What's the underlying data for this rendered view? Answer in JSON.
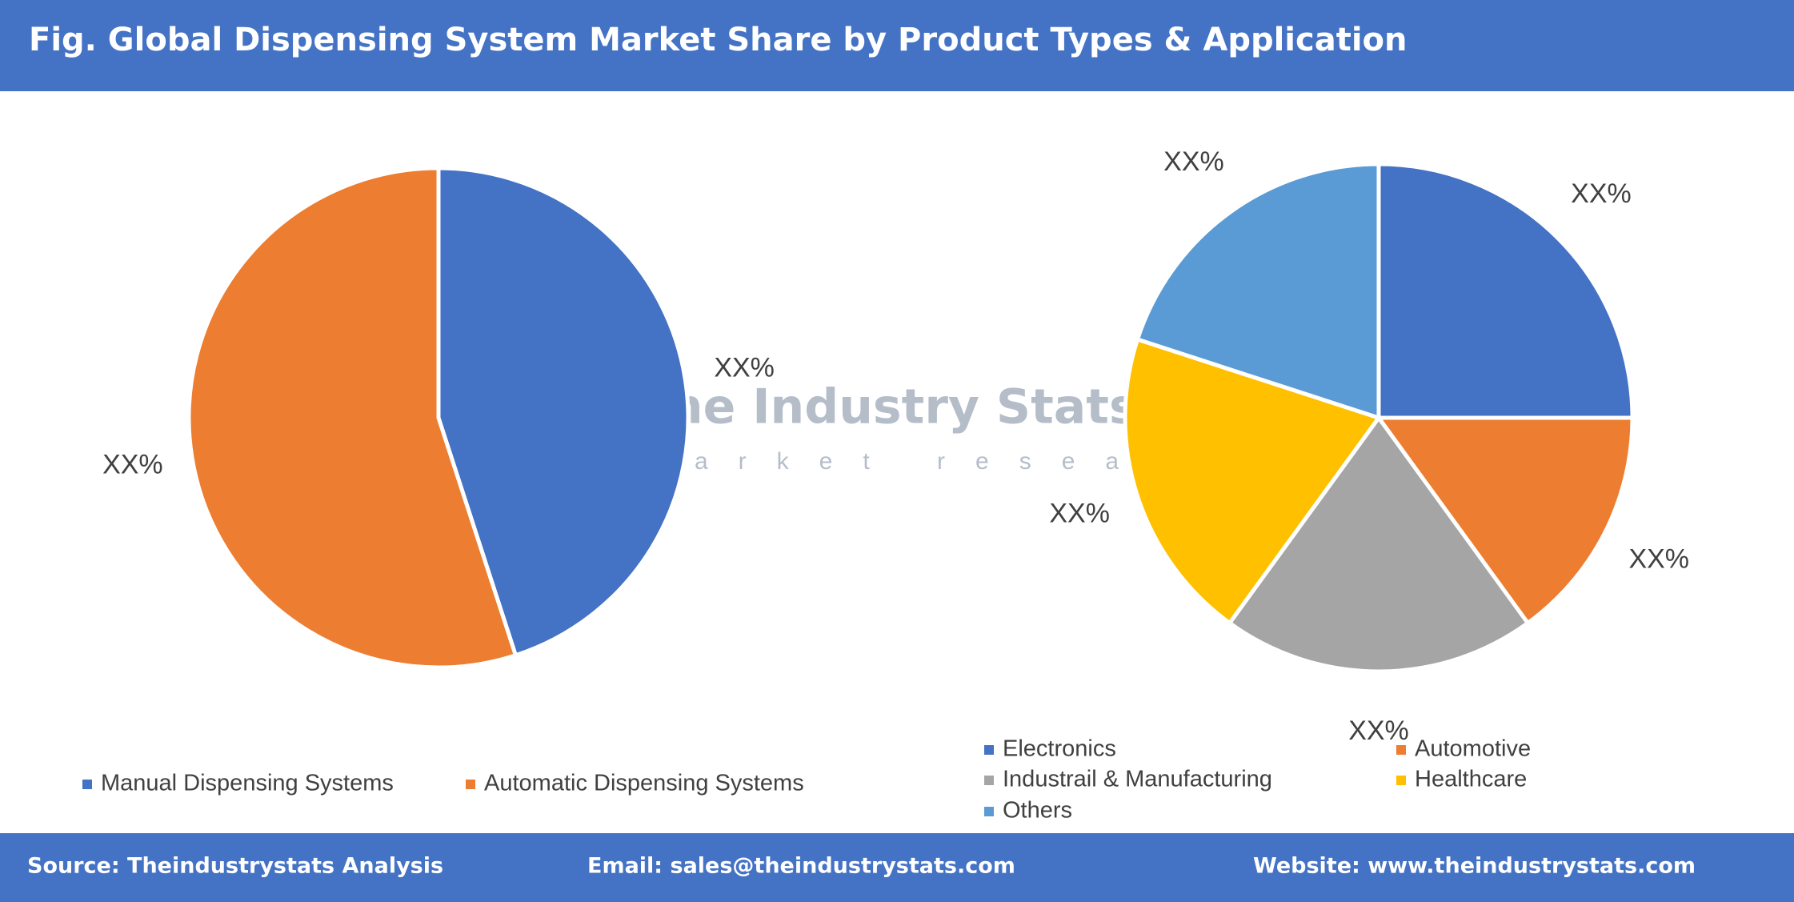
{
  "title": "Fig. Global Dispensing System Market Share by Product Types & Application",
  "watermark": {
    "name": "The Industry Stats",
    "tagline": "market research"
  },
  "chart_data": [
    {
      "type": "pie",
      "categories": [
        "Manual Dispensing Systems",
        "Automatic Dispensing Systems"
      ],
      "values": [
        45,
        55
      ],
      "value_labels": [
        "XX%",
        "XX%"
      ],
      "colors": [
        "#4472c4",
        "#ed7d31"
      ]
    },
    {
      "type": "pie",
      "categories": [
        "Electronics",
        "Automotive",
        "Industrail & Manufacturing",
        "Healthcare",
        "Others"
      ],
      "values": [
        25,
        15,
        20,
        20,
        20
      ],
      "value_labels": [
        "XX%",
        "XX%",
        "XX%",
        "XX%",
        "XX%"
      ],
      "colors": [
        "#4472c4",
        "#ed7d31",
        "#a5a5a5",
        "#ffc000",
        "#5b9bd5"
      ]
    }
  ],
  "footer": {
    "source": "Source: Theindustrystats Analysis",
    "email": "Email: sales@theindustrystats.com",
    "website": "Website: www.theindustrystats.com"
  }
}
